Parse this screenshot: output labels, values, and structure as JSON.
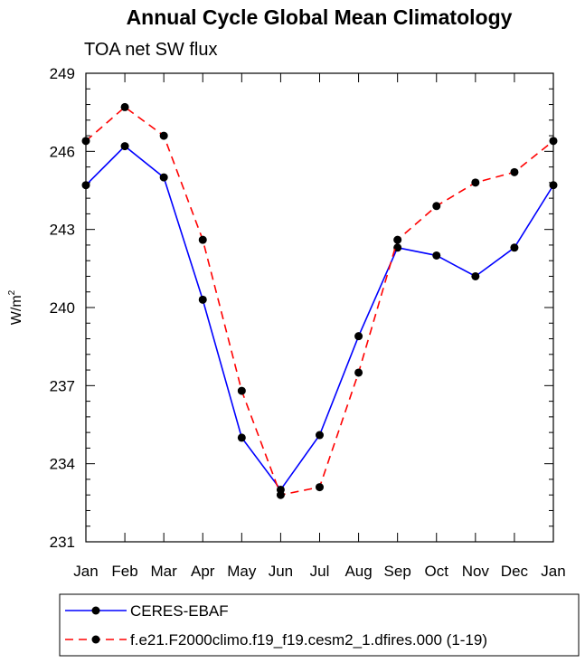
{
  "chart_data": {
    "type": "line",
    "title": "Annual Cycle Global Mean Climatology",
    "subtitle": "TOA net SW flux",
    "xlabel": "",
    "ylabel": "W/m",
    "ylabel_sup": "2",
    "categories": [
      "Jan",
      "Feb",
      "Mar",
      "Apr",
      "May",
      "Jun",
      "Jul",
      "Aug",
      "Sep",
      "Oct",
      "Nov",
      "Dec",
      "Jan"
    ],
    "ylim": [
      231,
      249
    ],
    "yticks": [
      231,
      234,
      237,
      240,
      243,
      246,
      249
    ],
    "series": [
      {
        "name": "CERES-EBAF",
        "color": "#0000ff",
        "dash": "solid",
        "values": [
          244.7,
          246.2,
          245.0,
          240.3,
          235.0,
          233.0,
          235.1,
          238.9,
          242.3,
          242.0,
          241.2,
          242.3,
          244.7
        ]
      },
      {
        "name": "f.e21.F2000climo.f19_f19.cesm2_1.dfires.000 (1-19)",
        "color": "#ff0000",
        "dash": "dashed",
        "values": [
          246.4,
          247.7,
          246.6,
          242.6,
          236.8,
          232.8,
          233.1,
          237.5,
          242.6,
          243.9,
          244.8,
          245.2,
          246.4
        ]
      }
    ],
    "legend_position": "bottom"
  }
}
